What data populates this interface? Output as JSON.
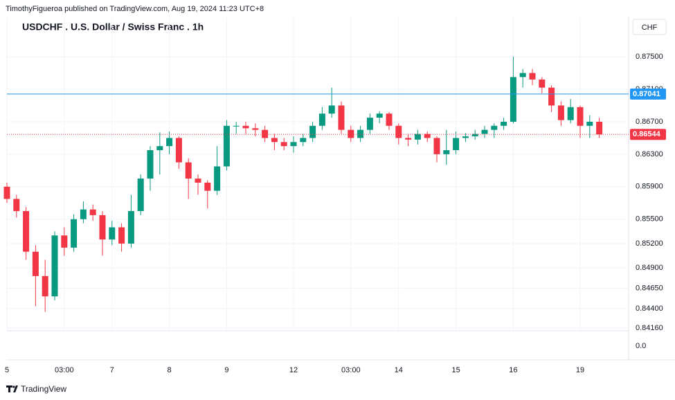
{
  "header": {
    "publisher": "TimothyFigueroa published on TradingView.com, Aug 19, 2024 11:23 UTC+8",
    "currency_button": "CHF",
    "brand": "TradingView"
  },
  "chart_data": {
    "type": "candlestick",
    "title": "USDCHF . U.S. Dollar / Swiss Franc . 1h",
    "categories": [
      "5",
      null,
      null,
      null,
      null,
      null,
      "03:00",
      null,
      null,
      null,
      null,
      "7",
      null,
      null,
      null,
      null,
      null,
      "8",
      null,
      null,
      null,
      null,
      null,
      "9",
      null,
      null,
      null,
      null,
      null,
      null,
      "12",
      null,
      null,
      null,
      null,
      null,
      "03:00",
      null,
      null,
      null,
      null,
      "14",
      null,
      null,
      null,
      null,
      null,
      "15",
      null,
      null,
      null,
      null,
      null,
      "16",
      null,
      null,
      null,
      null,
      null,
      null,
      "19",
      null,
      null
    ],
    "open": [
      0.859,
      0.8575,
      0.856,
      0.851,
      0.848,
      0.8455,
      0.853,
      0.8515,
      0.855,
      0.8562,
      0.8555,
      0.8525,
      0.854,
      0.852,
      0.856,
      0.86,
      0.8635,
      0.864,
      0.865,
      0.862,
      0.86,
      0.8595,
      0.8585,
      0.8615,
      0.8665,
      0.8665,
      0.8662,
      0.866,
      0.865,
      0.8645,
      0.864,
      0.8645,
      0.865,
      0.8665,
      0.868,
      0.869,
      0.866,
      0.865,
      0.866,
      0.8675,
      0.868,
      0.8665,
      0.865,
      0.8648,
      0.8655,
      0.865,
      0.863,
      0.8635,
      0.865,
      0.8652,
      0.8655,
      0.866,
      0.8665,
      0.867,
      0.8725,
      0.873,
      0.8722,
      0.8712,
      0.869,
      0.8672,
      0.8688,
      0.8665,
      0.867
    ],
    "high": [
      0.8595,
      0.858,
      0.8565,
      0.8518,
      0.85,
      0.8535,
      0.854,
      0.8556,
      0.8572,
      0.8568,
      0.856,
      0.8548,
      0.8545,
      0.858,
      0.8605,
      0.864,
      0.8657,
      0.8658,
      0.8652,
      0.8625,
      0.8605,
      0.8598,
      0.864,
      0.8672,
      0.867,
      0.867,
      0.8668,
      0.8665,
      0.8655,
      0.865,
      0.8652,
      0.8655,
      0.867,
      0.8688,
      0.8712,
      0.8695,
      0.8665,
      0.8665,
      0.868,
      0.8683,
      0.8682,
      0.8668,
      0.8655,
      0.866,
      0.8658,
      0.8652,
      0.866,
      0.8658,
      0.8656,
      0.866,
      0.8665,
      0.8668,
      0.8675,
      0.875,
      0.8735,
      0.8735,
      0.8725,
      0.8715,
      0.8695,
      0.8698,
      0.869,
      0.8678,
      0.8675
    ],
    "low": [
      0.857,
      0.8552,
      0.85,
      0.8443,
      0.8436,
      0.845,
      0.8505,
      0.851,
      0.8545,
      0.8548,
      0.8505,
      0.8518,
      0.851,
      0.8515,
      0.8555,
      0.8585,
      0.8605,
      0.863,
      0.8612,
      0.8575,
      0.858,
      0.8563,
      0.858,
      0.861,
      0.8655,
      0.8655,
      0.8652,
      0.8645,
      0.8635,
      0.8635,
      0.8632,
      0.864,
      0.8645,
      0.866,
      0.8675,
      0.8655,
      0.8645,
      0.8645,
      0.8655,
      0.8668,
      0.866,
      0.8642,
      0.864,
      0.8642,
      0.8645,
      0.862,
      0.8617,
      0.863,
      0.8645,
      0.8648,
      0.865,
      0.865,
      0.866,
      0.8668,
      0.8712,
      0.8715,
      0.8705,
      0.8682,
      0.8665,
      0.8668,
      0.865,
      0.865,
      0.865
    ],
    "close": [
      0.8575,
      0.856,
      0.851,
      0.848,
      0.8455,
      0.853,
      0.8515,
      0.855,
      0.8562,
      0.8555,
      0.8525,
      0.854,
      0.852,
      0.856,
      0.86,
      0.8635,
      0.864,
      0.865,
      0.862,
      0.86,
      0.8595,
      0.8585,
      0.8615,
      0.8665,
      0.8665,
      0.8662,
      0.866,
      0.865,
      0.8645,
      0.864,
      0.8645,
      0.865,
      0.8665,
      0.868,
      0.869,
      0.866,
      0.865,
      0.866,
      0.8675,
      0.868,
      0.8665,
      0.865,
      0.8648,
      0.8655,
      0.865,
      0.863,
      0.8635,
      0.865,
      0.8652,
      0.8655,
      0.866,
      0.8665,
      0.867,
      0.8725,
      0.873,
      0.8722,
      0.8712,
      0.869,
      0.8672,
      0.8688,
      0.8665,
      0.867,
      0.86544
    ],
    "up_color": "#089981",
    "down_color": "#f23645",
    "ylim": [
      0.84126,
      0.87986
    ],
    "yticks": [
      {
        "value": 0.8416,
        "label": "0.84160"
      },
      {
        "value": 0.844,
        "label": "0.84400"
      },
      {
        "value": 0.8465,
        "label": "0.84650"
      },
      {
        "value": 0.849,
        "label": "0.84900"
      },
      {
        "value": 0.852,
        "label": "0.85200"
      },
      {
        "value": 0.855,
        "label": "0.85500"
      },
      {
        "value": 0.859,
        "label": "0.85900"
      },
      {
        "value": 0.863,
        "label": "0.86300"
      },
      {
        "value": 0.867,
        "label": "0.86700"
      },
      {
        "value": 0.871,
        "label": "0.87100"
      },
      {
        "value": 0.875,
        "label": "0.87500"
      }
    ],
    "price_lines": [
      {
        "value": 0.87041,
        "label": "0.87041",
        "color": "#2196f3",
        "style": "solid"
      },
      {
        "value": 0.86544,
        "label": "0.86544",
        "color": "#f23645",
        "style": "dotted"
      }
    ],
    "lower_pane_tick": "0.0",
    "grid": true
  }
}
